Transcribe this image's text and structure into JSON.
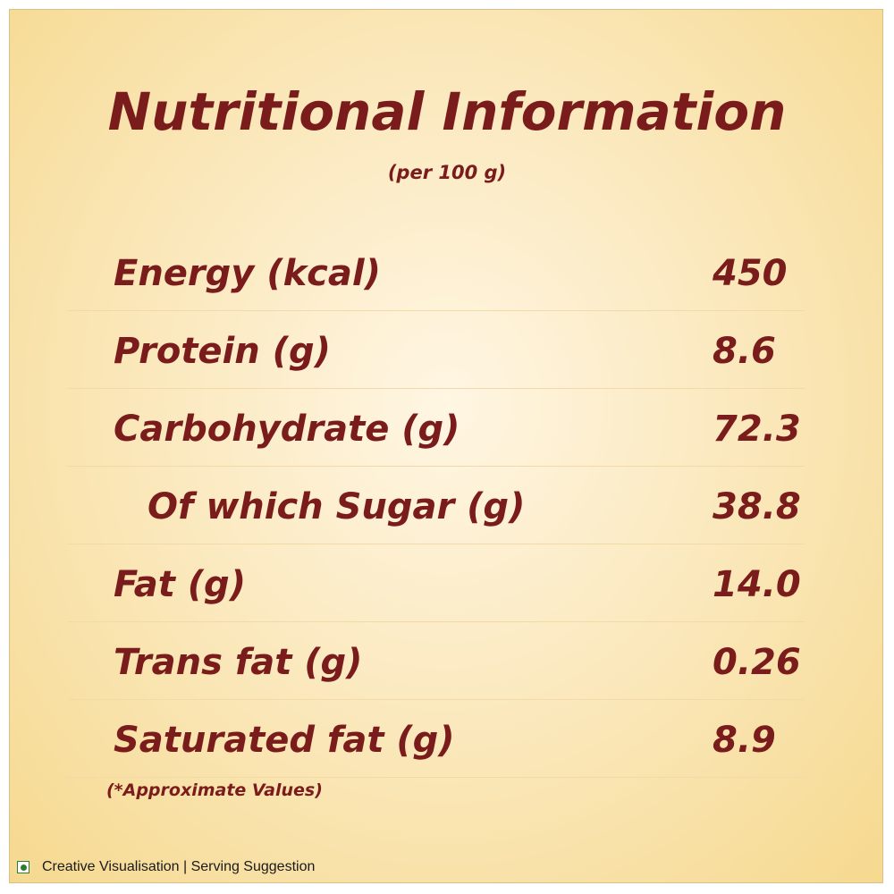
{
  "header": {
    "title": "Nutritional Information",
    "subtitle": "(per 100 g)"
  },
  "nutrition": {
    "rows": [
      {
        "label": "Energy (kcal)",
        "value": "450"
      },
      {
        "label": "Protein (g)",
        "value": "8.6"
      },
      {
        "label": "Carbohydrate (g)",
        "value": "72.3"
      },
      {
        "label": "Of which Sugar (g)",
        "value": "38.8"
      },
      {
        "label": "Fat (g)",
        "value": "14.0"
      },
      {
        "label": "Trans fat (g)",
        "value": "0.26"
      },
      {
        "label": "Saturated fat (g)",
        "value": "8.9"
      }
    ]
  },
  "footnote": "(*Approximate Values)",
  "footer": {
    "icon": "veg-mark-icon",
    "disclaimer": "Creative Visualisation | Serving Suggestion"
  },
  "colors": {
    "text": "#7a1c1c",
    "veg_mark": "#2e7d32",
    "background_light": "#fff6e3",
    "background_dark": "#f6d98f"
  }
}
